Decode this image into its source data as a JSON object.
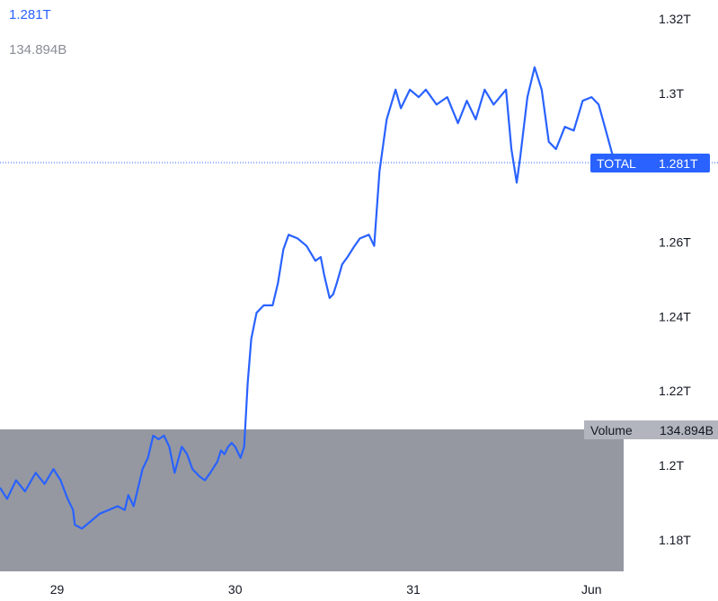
{
  "legend": {
    "total_value": "1.281T",
    "volume_value": "134.894B"
  },
  "colors": {
    "line": "#2962ff",
    "volume_fill": "#9598a1",
    "tag_bg": "#2962ff",
    "volume_tag_bg": "#b2b5be",
    "price_line": "#2962ff",
    "axis_text": "#131722"
  },
  "chart_data": {
    "type": "line",
    "title": "",
    "xlabel": "",
    "ylabel": "",
    "y_axis": {
      "unit": "T",
      "ticks": [
        1.18,
        1.2,
        1.22,
        1.24,
        1.26,
        1.28,
        1.3,
        1.32
      ],
      "tick_labels": [
        "1.18T",
        "1.2T",
        "1.22T",
        "1.24T",
        "1.26T",
        "",
        "1.3T",
        "1.32T"
      ],
      "range": [
        1.1715,
        1.3251
      ],
      "position": "right"
    },
    "x_axis": {
      "tick_positions": [
        29,
        30,
        31,
        32
      ],
      "tick_labels": [
        "29",
        "30",
        "31",
        "Jun"
      ],
      "range": [
        28.68,
        32.18
      ]
    },
    "grid": false,
    "series": [
      {
        "name": "TOTAL",
        "points": [
          [
            28.68,
            1.194
          ],
          [
            28.72,
            1.191
          ],
          [
            28.77,
            1.196
          ],
          [
            28.82,
            1.193
          ],
          [
            28.88,
            1.198
          ],
          [
            28.93,
            1.195
          ],
          [
            28.98,
            1.199
          ],
          [
            29.02,
            1.196
          ],
          [
            29.06,
            1.191
          ],
          [
            29.09,
            1.188
          ],
          [
            29.1,
            1.184
          ],
          [
            29.14,
            1.183
          ],
          [
            29.19,
            1.185
          ],
          [
            29.24,
            1.187
          ],
          [
            29.29,
            1.188
          ],
          [
            29.34,
            1.189
          ],
          [
            29.38,
            1.188
          ],
          [
            29.4,
            1.192
          ],
          [
            29.43,
            1.189
          ],
          [
            29.46,
            1.195
          ],
          [
            29.48,
            1.199
          ],
          [
            29.51,
            1.202
          ],
          [
            29.54,
            1.208
          ],
          [
            29.57,
            1.207
          ],
          [
            29.6,
            1.208
          ],
          [
            29.63,
            1.205
          ],
          [
            29.66,
            1.198
          ],
          [
            29.7,
            1.205
          ],
          [
            29.73,
            1.203
          ],
          [
            29.76,
            1.199
          ],
          [
            29.8,
            1.197
          ],
          [
            29.83,
            1.196
          ],
          [
            29.86,
            1.198
          ],
          [
            29.9,
            1.201
          ],
          [
            29.92,
            1.204
          ],
          [
            29.94,
            1.203
          ],
          [
            29.96,
            1.205
          ],
          [
            29.98,
            1.206
          ],
          [
            30.0,
            1.205
          ],
          [
            30.03,
            1.202
          ],
          [
            30.05,
            1.205
          ],
          [
            30.07,
            1.222
          ],
          [
            30.09,
            1.234
          ],
          [
            30.12,
            1.241
          ],
          [
            30.16,
            1.243
          ],
          [
            30.21,
            1.243
          ],
          [
            30.24,
            1.249
          ],
          [
            30.27,
            1.258
          ],
          [
            30.3,
            1.262
          ],
          [
            30.35,
            1.261
          ],
          [
            30.4,
            1.259
          ],
          [
            30.45,
            1.255
          ],
          [
            30.48,
            1.256
          ],
          [
            30.5,
            1.251
          ],
          [
            30.53,
            1.245
          ],
          [
            30.55,
            1.246
          ],
          [
            30.57,
            1.249
          ],
          [
            30.6,
            1.254
          ],
          [
            30.63,
            1.256
          ],
          [
            30.67,
            1.259
          ],
          [
            30.7,
            1.261
          ],
          [
            30.75,
            1.262
          ],
          [
            30.78,
            1.259
          ],
          [
            30.81,
            1.279
          ],
          [
            30.85,
            1.293
          ],
          [
            30.9,
            1.301
          ],
          [
            30.93,
            1.296
          ],
          [
            30.98,
            1.301
          ],
          [
            31.03,
            1.299
          ],
          [
            31.07,
            1.301
          ],
          [
            31.13,
            1.297
          ],
          [
            31.19,
            1.299
          ],
          [
            31.25,
            1.292
          ],
          [
            31.3,
            1.298
          ],
          [
            31.35,
            1.293
          ],
          [
            31.4,
            1.301
          ],
          [
            31.45,
            1.297
          ],
          [
            31.52,
            1.301
          ],
          [
            31.55,
            1.285
          ],
          [
            31.58,
            1.276
          ],
          [
            31.6,
            1.283
          ],
          [
            31.64,
            1.299
          ],
          [
            31.68,
            1.307
          ],
          [
            31.72,
            1.301
          ],
          [
            31.76,
            1.287
          ],
          [
            31.8,
            1.285
          ],
          [
            31.85,
            1.291
          ],
          [
            31.9,
            1.29
          ],
          [
            31.95,
            1.298
          ],
          [
            32.0,
            1.299
          ],
          [
            32.04,
            1.297
          ],
          [
            32.08,
            1.29
          ],
          [
            32.12,
            1.283
          ],
          [
            32.15,
            1.281
          ]
        ],
        "last_value_label": "1.281T"
      }
    ],
    "volume": {
      "label": "Volume",
      "last_value_label": "134.894B"
    },
    "legend": "top-left"
  }
}
